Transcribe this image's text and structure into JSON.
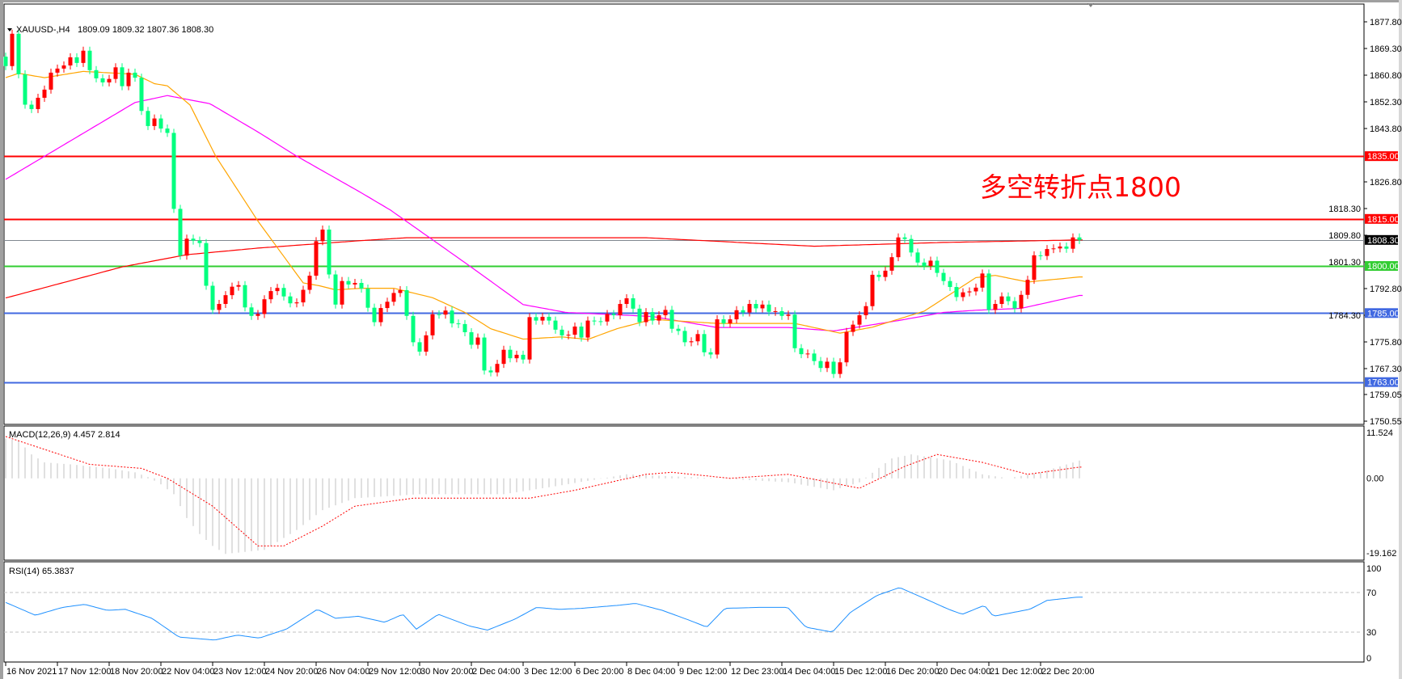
{
  "header": {
    "symbol": "XAUUSD-,H4",
    "ohlc": "1809.09 1809.32 1807.36 1808.30"
  },
  "annotation": {
    "text": "多空转折点1800",
    "color": "#ff0000"
  },
  "colors": {
    "bull": "#ff0000",
    "bear": "#00ff7f",
    "ma_fast": "#ffa500",
    "ma_mid": "#ff00ff",
    "ma_slow": "#ff0000",
    "macd_hist": "#c0c0c0",
    "macd_signal": "#ff0000",
    "rsi": "#1e90ff"
  },
  "price_axis": {
    "ticks": [
      "1877.80",
      "1869.30",
      "1860.80",
      "1852.30",
      "1843.80",
      "1826.80",
      "1818.30",
      "1809.80",
      "1801.30",
      "1792.80",
      "1784.30",
      "1775.80",
      "1767.30",
      "1759.05",
      "1750.55"
    ]
  },
  "levels": [
    {
      "price": 1835.0,
      "label": "1835.00",
      "color": "#ff0000",
      "kind": "resistance"
    },
    {
      "price": 1815.0,
      "label": "1815.00",
      "color": "#ff0000",
      "kind": "resistance"
    },
    {
      "price": 1808.3,
      "label": "1808.30",
      "color": "#000000",
      "line": "#808890",
      "kind": "bid"
    },
    {
      "price": 1800.0,
      "label": "1800.00",
      "color": "#32cd32",
      "kind": "pivot"
    },
    {
      "price": 1785.0,
      "label": "1785.00",
      "color": "#4169e1",
      "kind": "support"
    },
    {
      "price": 1763.0,
      "label": "1763.00",
      "color": "#4169e1",
      "kind": "support"
    }
  ],
  "chart_data": {
    "type": "candlestick",
    "first_open": 1866.7,
    "close": [
      1863.7,
      1874.0,
      1861.1,
      1851.4,
      1850.0,
      1853.6,
      1856.2,
      1861.6,
      1862.9,
      1863.9,
      1866.5,
      1864.7,
      1868.6,
      1862.4,
      1859.8,
      1858.5,
      1859.6,
      1863.3,
      1857.3,
      1861.6,
      1860.0,
      1849.4,
      1844.6,
      1847.0,
      1843.8,
      1842.4,
      1818.2,
      1803.3,
      1808.7,
      1808.1,
      1807.3,
      1793.7,
      1786.0,
      1787.9,
      1790.7,
      1793.4,
      1793.9,
      1786.8,
      1784.1,
      1784.7,
      1789.4,
      1792.0,
      1793.0,
      1790.3,
      1788.1,
      1788.4,
      1792.4,
      1796.9,
      1807.9,
      1811.6,
      1797.3,
      1787.7,
      1795.2,
      1794.1,
      1794.6,
      1792.8,
      1786.7,
      1782.1,
      1786.6,
      1788.6,
      1791.4,
      1792.3,
      1784.1,
      1775.7,
      1772.7,
      1777.9,
      1784.6,
      1784.5,
      1785.8,
      1781.7,
      1781.5,
      1778.9,
      1774.9,
      1777.2,
      1766.7,
      1766.1,
      1768.8,
      1773.3,
      1770.6,
      1771.7,
      1770.2,
      1783.7,
      1782.6,
      1783.8,
      1782.6,
      1779.7,
      1777.9,
      1778.1,
      1780.7,
      1777.2,
      1782.6,
      1782.4,
      1782.3,
      1784.7,
      1784.3,
      1787.9,
      1789.7,
      1786.4,
      1782.1,
      1785.3,
      1782.6,
      1784.3,
      1786.0,
      1780.0,
      1779.3,
      1775.7,
      1776.0,
      1778.3,
      1772.5,
      1771.8,
      1783.0,
      1781.7,
      1783.0,
      1785.9,
      1785.2,
      1787.9,
      1786.5,
      1787.7,
      1785.4,
      1785.6,
      1784.1,
      1784.5,
      1773.8,
      1771.9,
      1772.1,
      1769.7,
      1767.5,
      1769.5,
      1765.6,
      1769.3,
      1779.0,
      1781.3,
      1784.3,
      1787.2,
      1797.2,
      1796.5,
      1798.5,
      1802.8,
      1809.1,
      1808.6,
      1804.3,
      1801.1,
      1800.0,
      1801.7,
      1797.8,
      1795.2,
      1793.3,
      1790.1,
      1791.6,
      1791.9,
      1793.1,
      1797.6,
      1786.0,
      1787.9,
      1790.3,
      1788.8,
      1786.5,
      1790.8,
      1795.6,
      1803.4,
      1803.2,
      1805.4,
      1805.6,
      1806.2,
      1805.5,
      1809.1,
      1808.3
    ],
    "ylim": [
      1750.55,
      1877.8
    ],
    "moving_averages": {
      "fast": [
        [
          0,
          1860
        ],
        [
          2,
          1861.4
        ],
        [
          6,
          1860
        ],
        [
          12,
          1862
        ],
        [
          20,
          1861.1
        ],
        [
          23,
          1858.1
        ],
        [
          25,
          1857.4
        ],
        [
          28.5,
          1851.3
        ],
        [
          32.5,
          1834.9
        ],
        [
          39,
          1814.3
        ],
        [
          46,
          1794.6
        ],
        [
          48.5,
          1793.7
        ],
        [
          51,
          1792.4
        ],
        [
          55,
          1792.9
        ],
        [
          60,
          1792.9
        ],
        [
          66,
          1789.9
        ],
        [
          71,
          1785.2
        ],
        [
          75,
          1780
        ],
        [
          80,
          1776.7
        ],
        [
          86,
          1777.4
        ],
        [
          90,
          1776.6
        ],
        [
          94.5,
          1780
        ],
        [
          100,
          1783
        ],
        [
          110,
          1781.7
        ],
        [
          122,
          1781.7
        ],
        [
          129,
          1778.6
        ],
        [
          134,
          1780.5
        ],
        [
          142,
          1785.6
        ],
        [
          150,
          1796.3
        ],
        [
          153,
          1797
        ],
        [
          158,
          1794.9
        ],
        [
          166,
          1796.5
        ]
      ],
      "mid": [
        [
          0,
          1827.6
        ],
        [
          11.6,
          1841.8
        ],
        [
          20,
          1852.1
        ],
        [
          25,
          1854.3
        ],
        [
          31.6,
          1851.7
        ],
        [
          39,
          1842.7
        ],
        [
          45,
          1835
        ],
        [
          55,
          1823.3
        ],
        [
          59.5,
          1817.8
        ],
        [
          71.6,
          1800.2
        ],
        [
          80,
          1787.7
        ],
        [
          86.6,
          1785.2
        ],
        [
          100,
          1783.9
        ],
        [
          110,
          1780.4
        ],
        [
          121,
          1780.4
        ],
        [
          128,
          1779.3
        ],
        [
          138,
          1782.6
        ],
        [
          145,
          1785.2
        ],
        [
          150,
          1785.9
        ],
        [
          157,
          1786.5
        ],
        [
          166,
          1790.6
        ]
      ],
      "slow": [
        [
          0,
          1789.8
        ],
        [
          18,
          1799.7
        ],
        [
          28,
          1803.6
        ],
        [
          39,
          1805.7
        ],
        [
          55,
          1808.1
        ],
        [
          62,
          1809
        ],
        [
          99,
          1809
        ],
        [
          125,
          1806.3
        ],
        [
          145,
          1807.5
        ],
        [
          166,
          1808.3
        ]
      ]
    },
    "x_labels": [
      {
        "index": 0,
        "text": "16 Nov 2021"
      },
      {
        "index": 8,
        "text": "17 Nov 12:00"
      },
      {
        "index": 16,
        "text": "18 Nov 20:00"
      },
      {
        "index": 24,
        "text": "22 Nov 04:00"
      },
      {
        "index": 32,
        "text": "23 Nov 12:00"
      },
      {
        "index": 40,
        "text": "24 Nov 20:00"
      },
      {
        "index": 48,
        "text": "26 Nov 04:00"
      },
      {
        "index": 56,
        "text": "29 Nov 12:00"
      },
      {
        "index": 64,
        "text": "30 Nov 20:00"
      },
      {
        "index": 72,
        "text": "2 Dec 04:00"
      },
      {
        "index": 80,
        "text": "3 Dec 12:00"
      },
      {
        "index": 88,
        "text": "6 Dec 20:00"
      },
      {
        "index": 96,
        "text": "8 Dec 04:00"
      },
      {
        "index": 104,
        "text": "9 Dec 12:00"
      },
      {
        "index": 112,
        "text": "12 Dec 23:00"
      },
      {
        "index": 120,
        "text": "14 Dec 04:00"
      },
      {
        "index": 128,
        "text": "15 Dec 12:00"
      },
      {
        "index": 136,
        "text": "16 Dec 20:00"
      },
      {
        "index": 144,
        "text": "20 Dec 04:00"
      },
      {
        "index": 152,
        "text": "21 Dec 12:00"
      },
      {
        "index": 160,
        "text": "22 Dec 20:00"
      }
    ]
  },
  "macd": {
    "label": "MACD(12,26,9) 4.457 2.814",
    "axis": {
      "max": "11.524",
      "zero": "0.00",
      "min": "-19.162"
    },
    "ylim": [
      -19.162,
      11.524
    ],
    "main": [
      [
        0,
        10
      ],
      [
        2,
        9.5
      ],
      [
        4,
        6
      ],
      [
        6,
        4
      ],
      [
        10,
        3.5
      ],
      [
        16,
        2.5
      ],
      [
        20,
        1.5
      ],
      [
        22,
        0.3
      ],
      [
        24,
        -1.5
      ],
      [
        26,
        -4
      ],
      [
        28,
        -10
      ],
      [
        30,
        -14
      ],
      [
        32,
        -17
      ],
      [
        34,
        -19
      ],
      [
        40,
        -18
      ],
      [
        45,
        -13
      ],
      [
        49,
        -8
      ],
      [
        54,
        -5
      ],
      [
        64,
        -4
      ],
      [
        77,
        -4
      ],
      [
        85,
        -2
      ],
      [
        96,
        1
      ],
      [
        110,
        0
      ],
      [
        121,
        -1
      ],
      [
        128,
        -3
      ],
      [
        132,
        -1
      ],
      [
        137,
        5
      ],
      [
        140,
        6
      ],
      [
        146,
        4.5
      ],
      [
        151,
        1
      ],
      [
        155,
        0
      ],
      [
        160,
        1.5
      ],
      [
        166,
        4.457
      ]
    ],
    "signal": [
      [
        0,
        10.5
      ],
      [
        13,
        3.5
      ],
      [
        21,
        2.5
      ],
      [
        25,
        0
      ],
      [
        32,
        -7
      ],
      [
        39,
        -17
      ],
      [
        43,
        -17
      ],
      [
        49,
        -12
      ],
      [
        54,
        -7
      ],
      [
        63,
        -5
      ],
      [
        81,
        -5
      ],
      [
        88,
        -3
      ],
      [
        99,
        1
      ],
      [
        103,
        1.5
      ],
      [
        112,
        0
      ],
      [
        121,
        1
      ],
      [
        132,
        -2.5
      ],
      [
        139,
        3
      ],
      [
        144,
        6
      ],
      [
        151,
        4
      ],
      [
        158,
        1
      ],
      [
        166,
        2.814
      ]
    ]
  },
  "rsi": {
    "label": "RSI(14) 65.3837",
    "axis": [
      "100",
      "70",
      "30",
      "0"
    ],
    "levels": [
      70,
      30
    ],
    "values": [
      [
        0,
        60
      ],
      [
        4.6,
        47
      ],
      [
        8.8,
        55
      ],
      [
        12.2,
        58
      ],
      [
        15.7,
        52
      ],
      [
        18.5,
        53
      ],
      [
        22.6,
        44
      ],
      [
        26.8,
        25
      ],
      [
        32.3,
        22
      ],
      [
        35.8,
        27
      ],
      [
        39.2,
        24
      ],
      [
        43.4,
        33
      ],
      [
        48.2,
        53
      ],
      [
        51,
        44
      ],
      [
        54.5,
        46
      ],
      [
        58.6,
        40
      ],
      [
        61.4,
        48
      ],
      [
        63.5,
        33
      ],
      [
        66.9,
        48
      ],
      [
        71.8,
        36
      ],
      [
        74.5,
        32
      ],
      [
        78.7,
        43
      ],
      [
        82.1,
        55
      ],
      [
        85.6,
        53
      ],
      [
        89,
        54
      ],
      [
        94.6,
        57
      ],
      [
        97.4,
        59
      ],
      [
        101.5,
        52
      ],
      [
        105.7,
        42
      ],
      [
        108.4,
        35
      ],
      [
        111.2,
        54
      ],
      [
        116.7,
        55
      ],
      [
        120.9,
        55
      ],
      [
        123.7,
        35
      ],
      [
        127.8,
        30
      ],
      [
        130.6,
        50
      ],
      [
        134.7,
        67
      ],
      [
        138.2,
        75
      ],
      [
        141.7,
        65
      ],
      [
        145.8,
        53
      ],
      [
        147.9,
        48
      ],
      [
        151.3,
        57
      ],
      [
        152.7,
        46
      ],
      [
        158.3,
        53
      ],
      [
        161,
        62
      ],
      [
        165.2,
        65
      ],
      [
        166,
        65.3837
      ]
    ]
  }
}
